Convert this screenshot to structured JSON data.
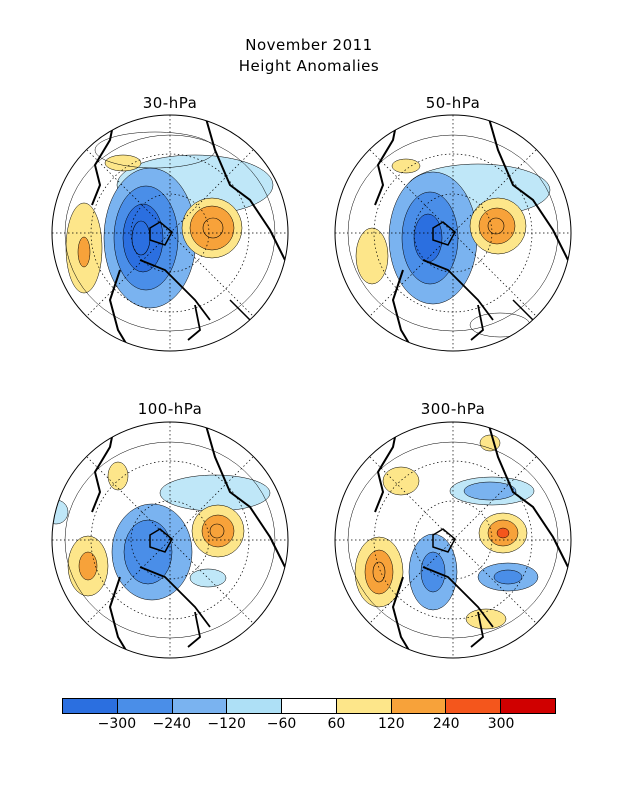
{
  "title": "November 2011",
  "subtitle": "Height Anomalies",
  "panels": [
    {
      "label": "30-hPa"
    },
    {
      "label": "50-hPa"
    },
    {
      "label": "100-hPa"
    },
    {
      "label": "300-hPa"
    }
  ],
  "colorbar": {
    "labels": [
      "−300",
      "−240",
      "−120",
      "−60",
      "60",
      "120",
      "240",
      "300"
    ],
    "colors": [
      "#2b6fe0",
      "#4a8ee8",
      "#7ab3f0",
      "#aee0f6",
      "#ffffff",
      "#fde68a",
      "#f7a23a",
      "#f4561c",
      "#d00000"
    ]
  },
  "palette": {
    "land_outline": "#000000",
    "neg_strong": "#2f6fd6",
    "neg_mid": "#7ab3f0",
    "neg_weak": "#bfe7f8",
    "pos_weak": "#fde68a",
    "pos_mid": "#f7a23a",
    "pos_strong": "#e2521a"
  }
}
